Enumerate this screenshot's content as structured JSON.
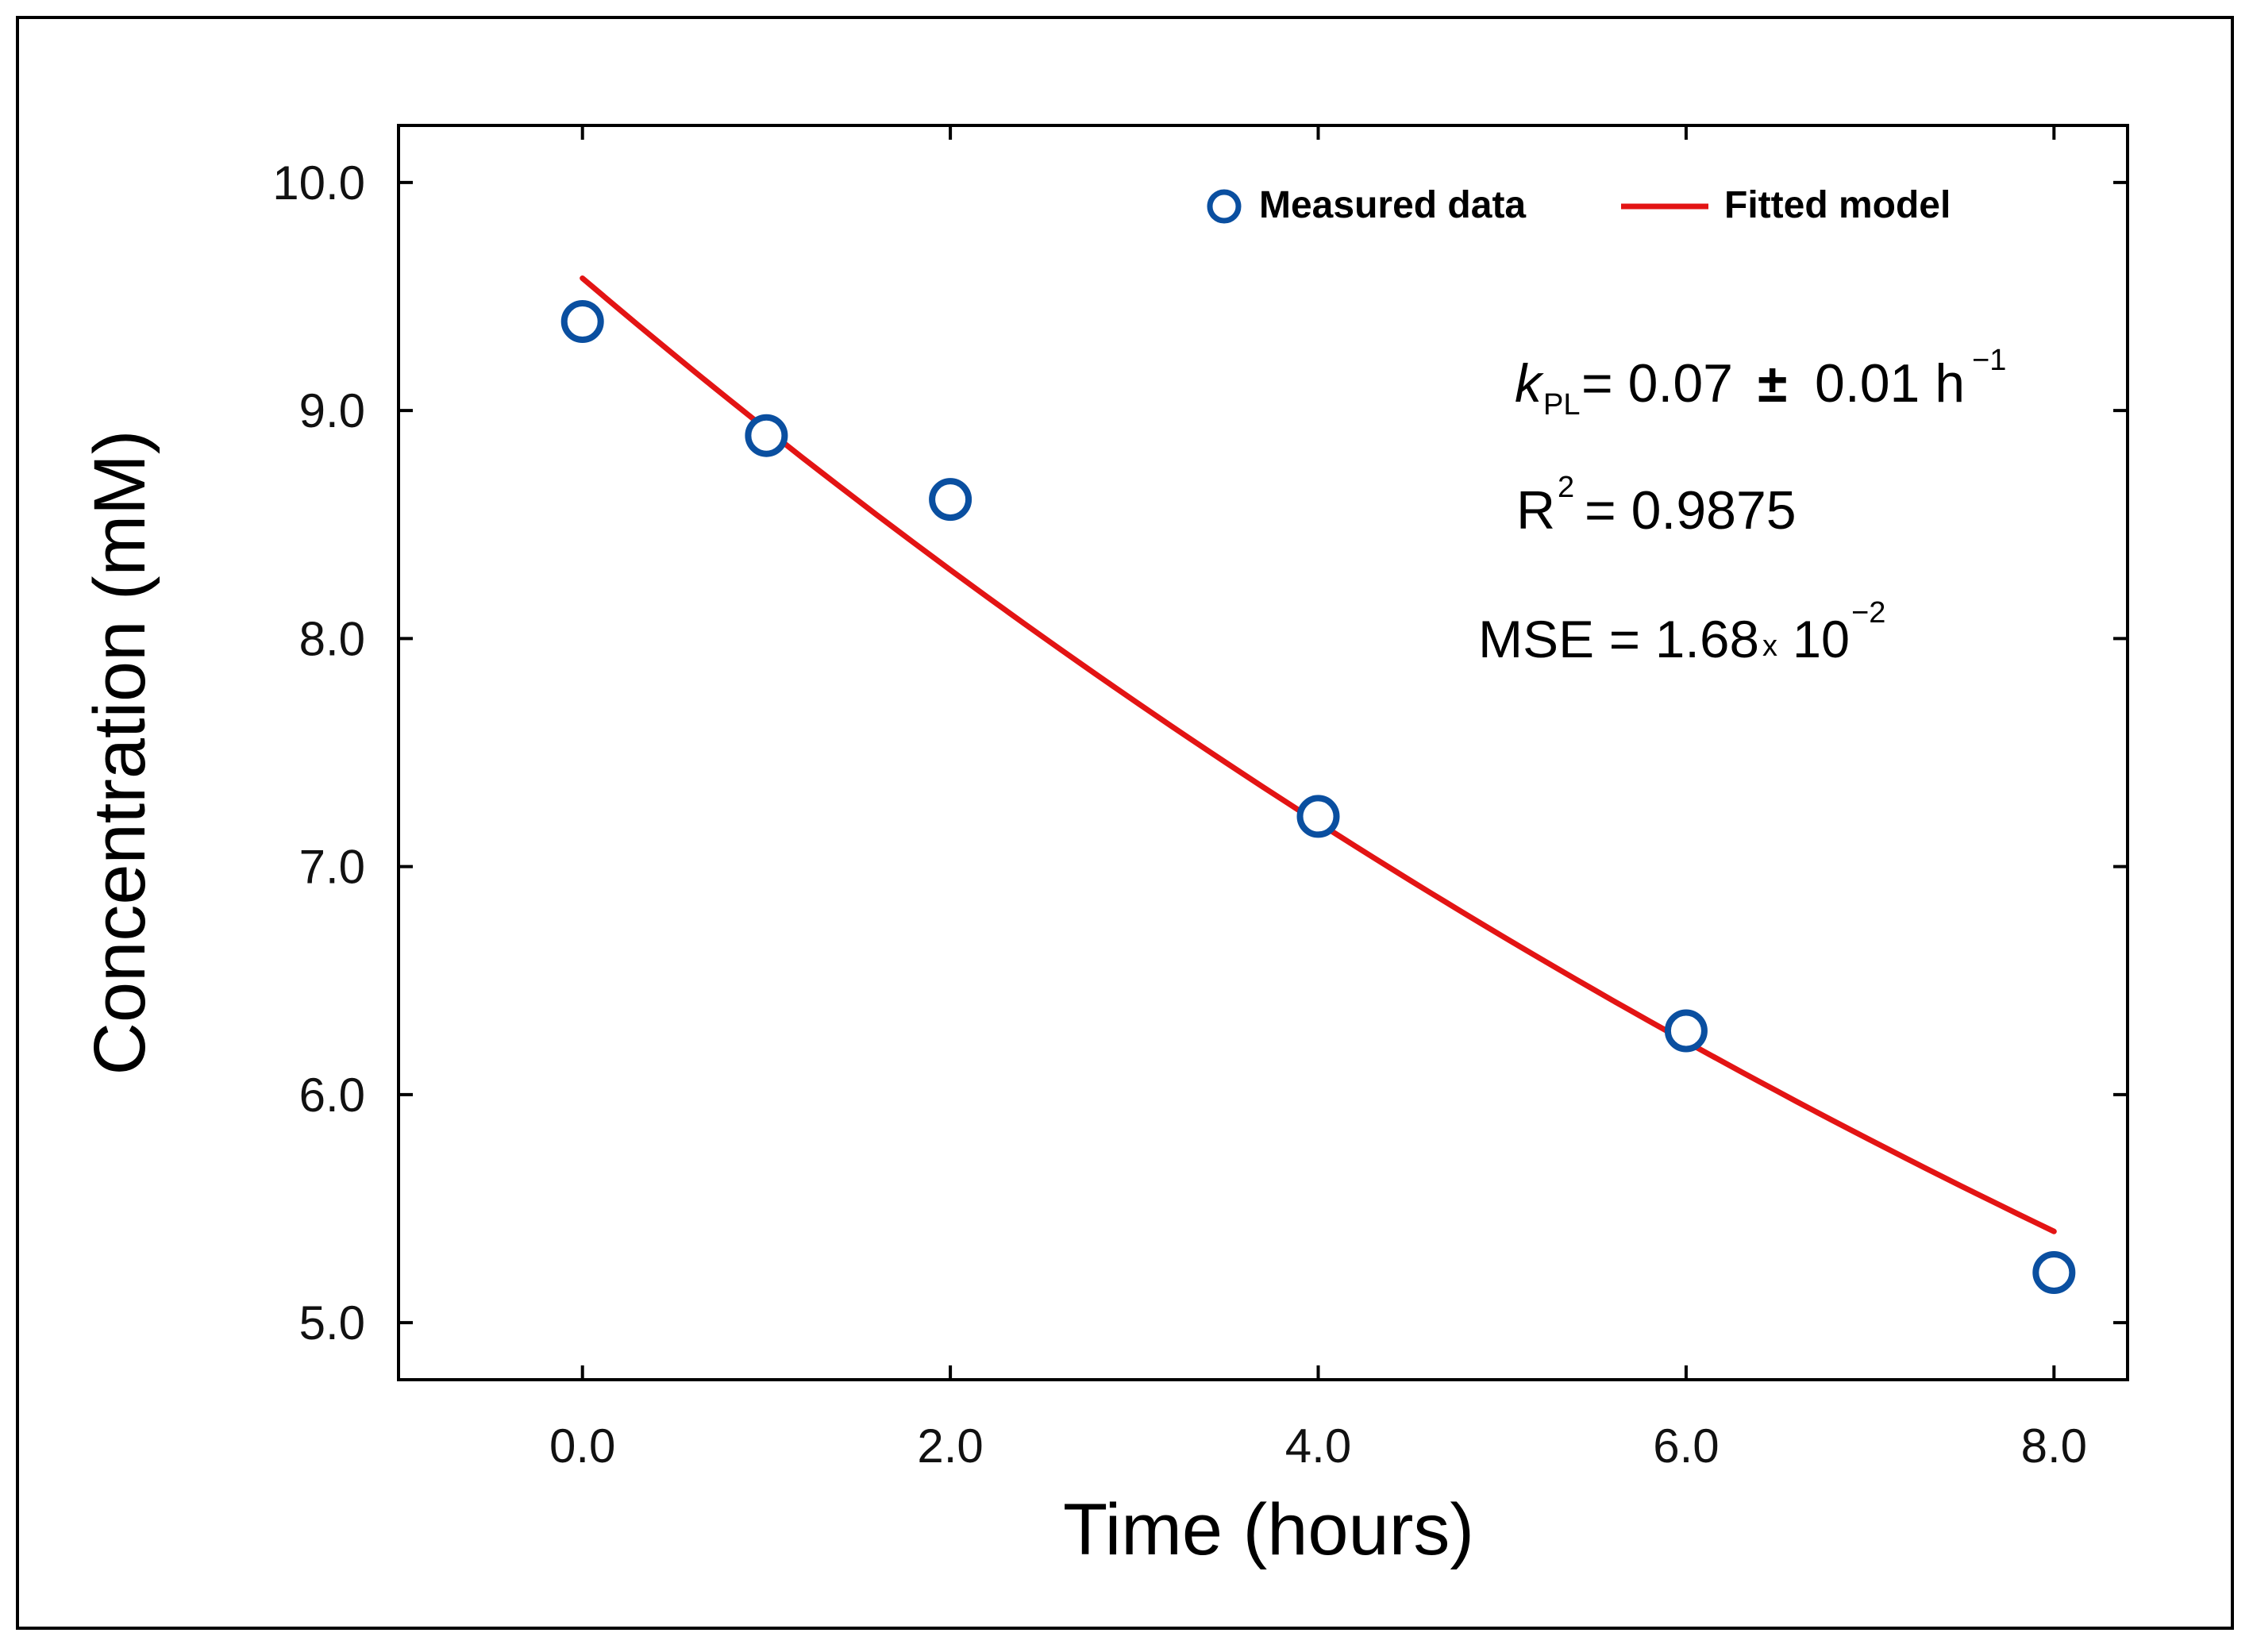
{
  "chart_data": {
    "type": "scatter",
    "title": "",
    "xlabel": "Time (hours)",
    "ylabel": "Concentration (mM)",
    "xlim": [
      -1.0,
      8.4
    ],
    "ylim": [
      4.75,
      10.25
    ],
    "xticks": [
      0,
      2,
      4,
      6,
      8
    ],
    "xtick_labels": [
      "0.0",
      "2.0",
      "4.0",
      "6.0",
      "8.0"
    ],
    "yticks": [
      5,
      6,
      7,
      8,
      9,
      10
    ],
    "ytick_labels": [
      "5.0",
      "6.0",
      "7.0",
      "8.0",
      "9.0",
      "10.0"
    ],
    "legend_position": "top-right",
    "series": [
      {
        "name": "Measured data",
        "kind": "scatter",
        "marker": "open-circle",
        "color": "#0a4fa0",
        "x": [
          0,
          1,
          2,
          4,
          6,
          8
        ],
        "y": [
          9.39,
          8.89,
          8.61,
          7.22,
          6.28,
          5.22
        ]
      },
      {
        "name": "Fitted model",
        "kind": "line",
        "color": "#e31414",
        "model": "exponential",
        "c0": 9.58,
        "k": 0.07165,
        "x_range": [
          0,
          8
        ]
      }
    ],
    "annotations": {
      "k_label": "k",
      "k_subscript": "PL",
      "k_value": "= 0.07",
      "k_pm": "±",
      "k_err": "0.01 h",
      "k_unit_sup": "−1",
      "r2_label": "R",
      "r2_sup": "2",
      "r2_value": "= 0.9875",
      "mse_label": "MSE = 1.68",
      "mse_times": "x",
      "mse_base": "10",
      "mse_sup": "−2"
    }
  }
}
